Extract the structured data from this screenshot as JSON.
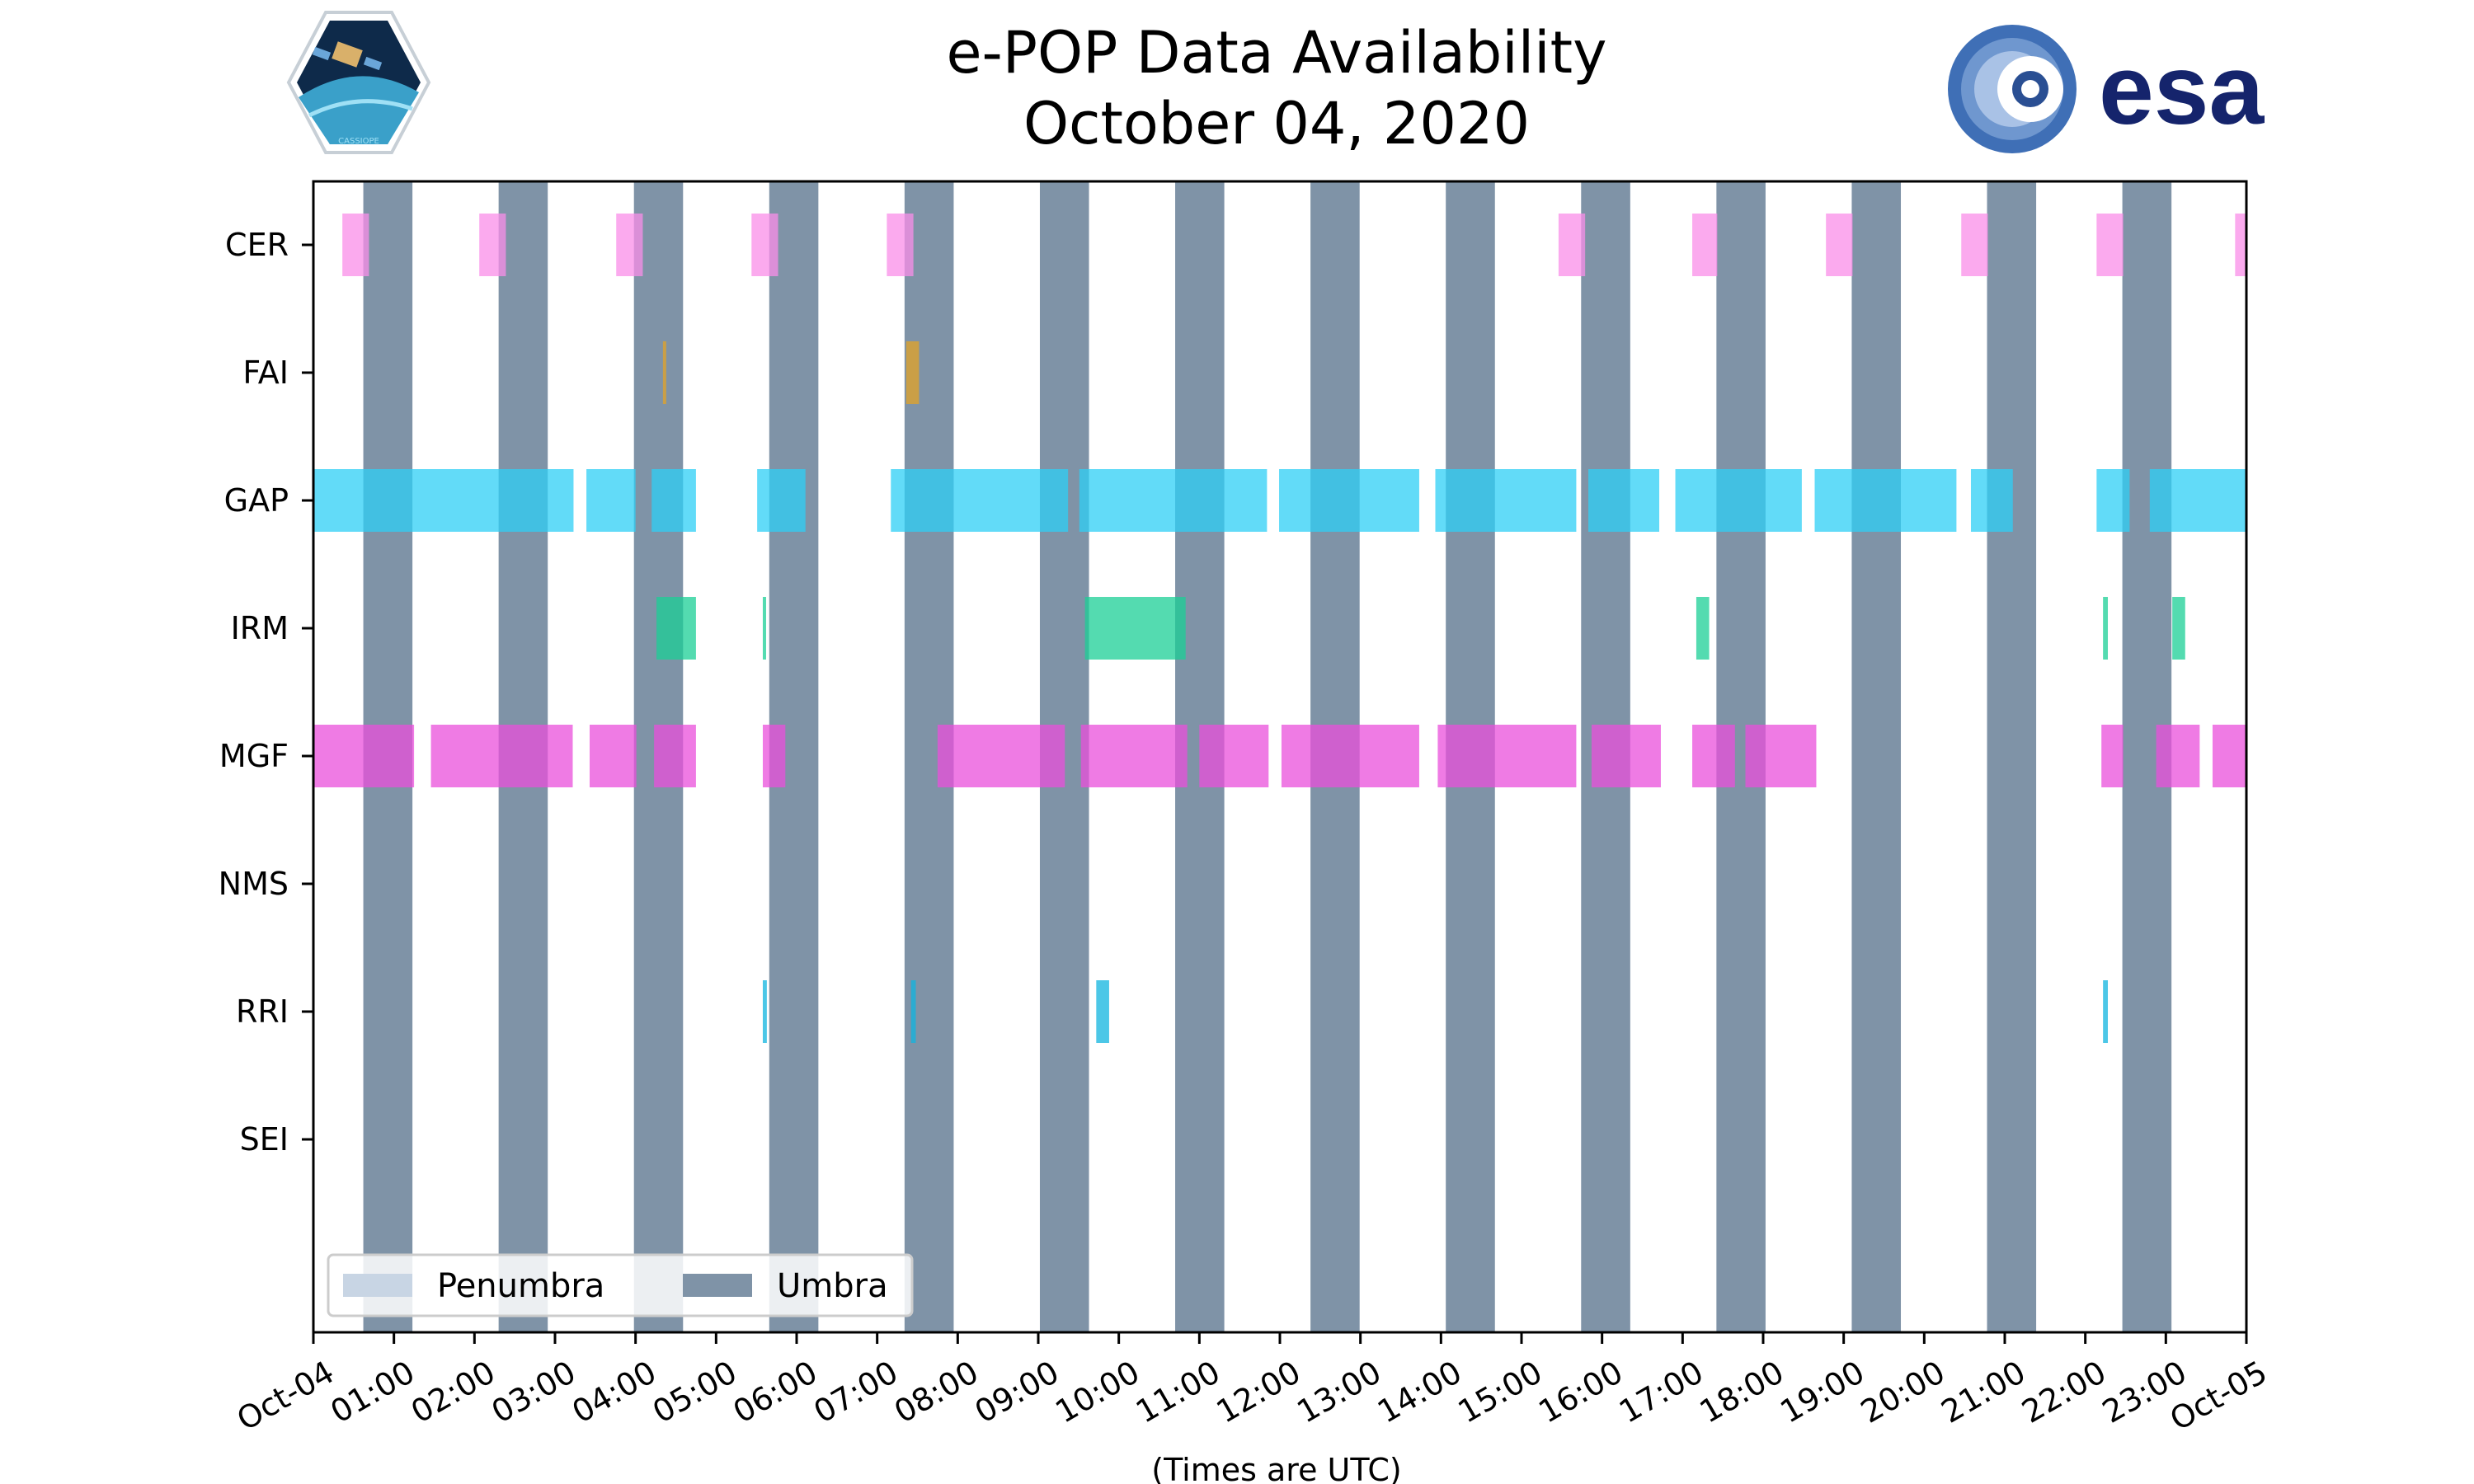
{
  "logos": {
    "left_logo_text": "CASSIOPE",
    "right_logo_text": "esa"
  },
  "chart_data": {
    "type": "timeline",
    "title": "e-POP Data Availability",
    "subtitle": "October 04, 2020",
    "xlabel": "(Times are UTC)",
    "xlim": [
      0,
      24
    ],
    "x_unit": "hours UTC",
    "x_tick_labels": [
      "Oct-04",
      "01:00",
      "02:00",
      "03:00",
      "04:00",
      "05:00",
      "06:00",
      "07:00",
      "08:00",
      "09:00",
      "10:00",
      "11:00",
      "12:00",
      "13:00",
      "14:00",
      "15:00",
      "16:00",
      "17:00",
      "18:00",
      "19:00",
      "20:00",
      "21:00",
      "22:00",
      "23:00",
      "Oct-05"
    ],
    "instruments": [
      "CER",
      "FAI",
      "GAP",
      "IRM",
      "MGF",
      "NMS",
      "RRI",
      "SEI"
    ],
    "colors": {
      "CER": "#f98ee8",
      "FAI": "#e3a326",
      "GAP": "#2ecff5",
      "IRM": "#1bcf96",
      "MGF": "#ea4fdb",
      "RRI": "#10b4df",
      "umbra": "#7f93a7",
      "penumbra": "#c8d5e4"
    },
    "umbra": [
      [
        0.62,
        1.23
      ],
      [
        2.3,
        2.91
      ],
      [
        3.98,
        4.59
      ],
      [
        5.66,
        6.27
      ],
      [
        7.34,
        7.95
      ],
      [
        9.02,
        9.63
      ],
      [
        10.7,
        11.31
      ],
      [
        12.38,
        12.99
      ],
      [
        14.06,
        14.67
      ],
      [
        15.74,
        16.35
      ],
      [
        17.42,
        18.03
      ],
      [
        19.1,
        19.71
      ],
      [
        20.78,
        21.39
      ],
      [
        22.46,
        23.07
      ]
    ],
    "series": [
      {
        "name": "CER",
        "intervals": [
          [
            0.36,
            0.69
          ],
          [
            2.06,
            2.39
          ],
          [
            3.76,
            4.09
          ],
          [
            5.44,
            5.77
          ],
          [
            7.12,
            7.45
          ],
          [
            15.46,
            15.79
          ],
          [
            17.12,
            17.43
          ],
          [
            18.78,
            19.11
          ],
          [
            20.46,
            20.79
          ],
          [
            22.14,
            22.47
          ],
          [
            23.86,
            24.0
          ]
        ]
      },
      {
        "name": "FAI",
        "intervals": [
          [
            4.34,
            4.38
          ],
          [
            7.36,
            7.52
          ]
        ]
      },
      {
        "name": "GAP",
        "intervals": [
          [
            0.0,
            3.23
          ],
          [
            3.39,
            4.0
          ],
          [
            4.2,
            4.75
          ],
          [
            5.51,
            6.11
          ],
          [
            7.17,
            9.37
          ],
          [
            9.51,
            11.84
          ],
          [
            11.99,
            13.73
          ],
          [
            13.93,
            15.68
          ],
          [
            15.83,
            16.71
          ],
          [
            16.91,
            18.48
          ],
          [
            18.64,
            20.4
          ],
          [
            20.58,
            21.1
          ],
          [
            22.14,
            22.55
          ],
          [
            22.8,
            24.0
          ]
        ]
      },
      {
        "name": "IRM",
        "intervals": [
          [
            4.26,
            4.75
          ],
          [
            5.58,
            5.62
          ],
          [
            9.58,
            10.83
          ],
          [
            17.17,
            17.33
          ],
          [
            22.22,
            22.28
          ],
          [
            23.08,
            23.24
          ]
        ]
      },
      {
        "name": "MGF",
        "intervals": [
          [
            0.0,
            1.25
          ],
          [
            1.46,
            3.22
          ],
          [
            3.43,
            4.01
          ],
          [
            4.23,
            4.75
          ],
          [
            5.58,
            5.86
          ],
          [
            7.75,
            9.33
          ],
          [
            9.53,
            10.85
          ],
          [
            11.0,
            11.86
          ],
          [
            12.02,
            13.73
          ],
          [
            13.96,
            15.68
          ],
          [
            15.87,
            16.73
          ],
          [
            17.12,
            17.65
          ],
          [
            17.78,
            18.66
          ],
          [
            22.2,
            22.47
          ],
          [
            22.88,
            23.42
          ],
          [
            23.58,
            24.0
          ]
        ]
      },
      {
        "name": "NMS",
        "intervals": []
      },
      {
        "name": "RRI",
        "intervals": [
          [
            5.58,
            5.63
          ],
          [
            7.42,
            7.48
          ],
          [
            9.72,
            9.88
          ],
          [
            22.22,
            22.28
          ]
        ]
      },
      {
        "name": "SEI",
        "intervals": []
      }
    ],
    "legend": {
      "placement": "lower-left",
      "entries": [
        "Penumbra",
        "Umbra"
      ]
    }
  }
}
